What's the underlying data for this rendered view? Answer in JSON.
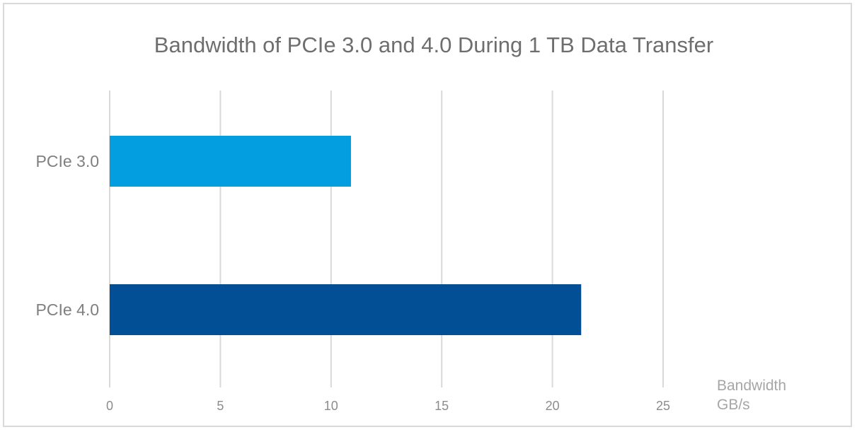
{
  "chart_data": {
    "type": "bar",
    "orientation": "horizontal",
    "title": "Bandwidth of PCIe 3.0 and 4.0 During 1 TB Data Transfer",
    "categories": [
      "PCIe 3.0",
      "PCIe 4.0"
    ],
    "values": [
      10.9,
      21.3
    ],
    "colors": [
      "#039ee0",
      "#024f96"
    ],
    "xlim": [
      0,
      25
    ],
    "xticks": [
      "0",
      "5",
      "10",
      "15",
      "20",
      "25"
    ],
    "xlabel_lines": [
      "Bandwidth",
      "GB/s"
    ],
    "grid": "vertical"
  }
}
